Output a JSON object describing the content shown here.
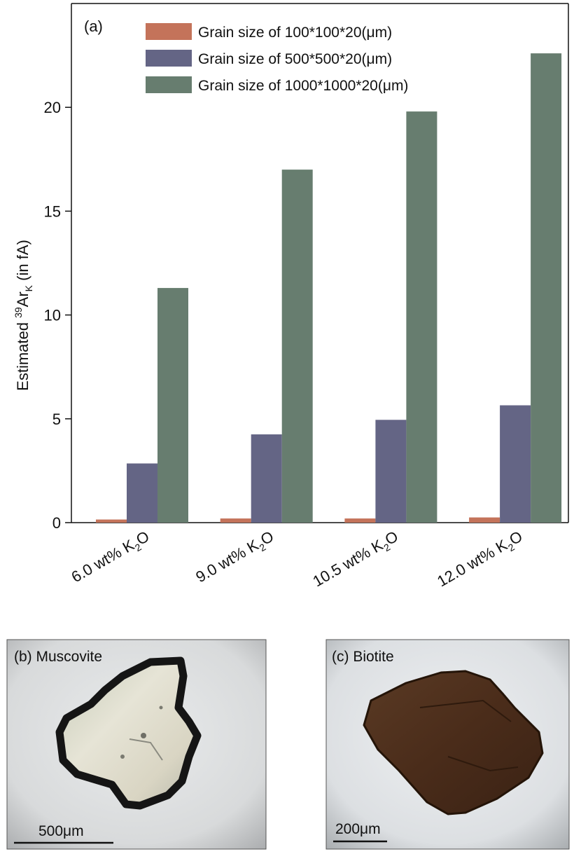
{
  "chart_data": {
    "type": "bar",
    "panel_label": "(a)",
    "ylabel": {
      "prefix": "Estimated ",
      "sup": "39",
      "main": "Ar",
      "sub": "K",
      "suffix": " (in fA)"
    },
    "ylim": [
      0,
      25
    ],
    "yticks": [
      "0",
      "5",
      "10",
      "15",
      "20"
    ],
    "grid": false,
    "legend_position": "top",
    "categories": [
      {
        "pre": "6.0 wt% K",
        "sub": "2",
        "post": "O"
      },
      {
        "pre": "9.0 wt% K",
        "sub": "2",
        "post": "O"
      },
      {
        "pre": "10.5 wt% K",
        "sub": "2",
        "post": "O"
      },
      {
        "pre": "12.0 wt% K",
        "sub": "2",
        "post": "O"
      }
    ],
    "series": [
      {
        "name": "Grain size of 100*100*20(μm)",
        "color": "#c4735a",
        "values": [
          0.15,
          0.2,
          0.2,
          0.25
        ]
      },
      {
        "name": "Grain size of 500*500*20(μm)",
        "color": "#646585",
        "values": [
          2.85,
          4.25,
          4.95,
          5.65
        ]
      },
      {
        "name": "Grain size of 1000*1000*20(μm)",
        "color": "#677d6f",
        "values": [
          11.3,
          17.0,
          19.8,
          22.6
        ]
      }
    ]
  },
  "photos": {
    "b": {
      "label": "(b) Muscovite",
      "scale": "500μm"
    },
    "c": {
      "label": "(c) Biotite",
      "scale": "200μm"
    }
  }
}
